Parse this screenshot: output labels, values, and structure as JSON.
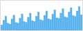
{
  "chart_data": {
    "type": "bar",
    "values": [
      370,
      430,
      480,
      390,
      380,
      445,
      495,
      400,
      390,
      455,
      508,
      412,
      402,
      468,
      520,
      424,
      414,
      480,
      534,
      436,
      426,
      492,
      548,
      448,
      438,
      506,
      562,
      460,
      452,
      520,
      576,
      474,
      465,
      534,
      590,
      488,
      478,
      548,
      604,
      500
    ],
    "color": "#5ab4f0",
    "ylim": [
      300,
      680
    ],
    "tick_labels": false
  }
}
